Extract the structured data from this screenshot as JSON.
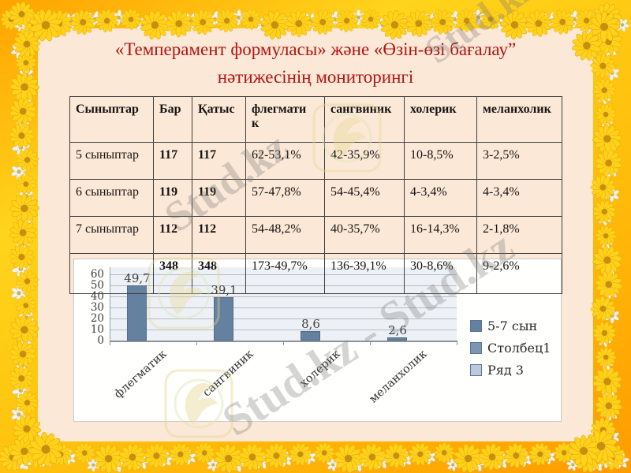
{
  "slide": {
    "title_line1": "«Темперамент формуласы» және «Өзін-өзі бағалау”",
    "title_line2": "нәтижесінің мониторингі"
  },
  "watermark": {
    "text": "Stud.kz",
    "text_pair": "Stud.kz - Stud.kz"
  },
  "table": {
    "headers": [
      "Сыныптар",
      "Бар",
      "Қатыс",
      "флегматик",
      "сангвиник",
      "холерик",
      "меланхолик"
    ],
    "rows": [
      [
        "5 сыныптар",
        "117",
        "117",
        "62-53,1%",
        "42-35,9%",
        "10-8,5%",
        "3-2,5%"
      ],
      [
        "6 сыныптар",
        "119",
        "119",
        "57-47,8%",
        "54-45,4%",
        "4-3,4%",
        "4-3,4%"
      ],
      [
        "7 сыныптар",
        "112",
        "112",
        "54-48,2%",
        "40-35,7%",
        "16-14,3%",
        "2-1,8%"
      ],
      [
        "",
        "348",
        "348",
        "173-49,7%",
        "136-39,1%",
        "30-8,6%",
        "9-2,6%"
      ]
    ]
  },
  "chart_data": {
    "type": "bar",
    "title": "",
    "categories": [
      "флегматик",
      "сангвиник",
      "холерик",
      "меланхолик"
    ],
    "series": [
      {
        "name": "5-7 сын",
        "values": [
          49.7,
          39.1,
          8.6,
          2.6
        ],
        "color": "#64819f"
      },
      {
        "name": "Столбец1",
        "values": [
          null,
          null,
          null,
          null
        ],
        "color": "#7b96b4"
      },
      {
        "name": "Ряд 3",
        "values": [
          null,
          null,
          null,
          null
        ],
        "color": "#bcc9da"
      }
    ],
    "value_labels": [
      "49,7",
      "39,1",
      "8,6",
      "2,6"
    ],
    "y_ticks": [
      0,
      10,
      20,
      30,
      40,
      50,
      60
    ],
    "ylim": [
      0,
      60
    ],
    "grid": true,
    "legend_position": "right"
  },
  "colors": {
    "title_text": "#b21414",
    "content_bg": "#fbe8d6",
    "border_gold": "#ffc30e",
    "bar_fill": "#64819f",
    "plot_bg": "#edf1f6"
  }
}
